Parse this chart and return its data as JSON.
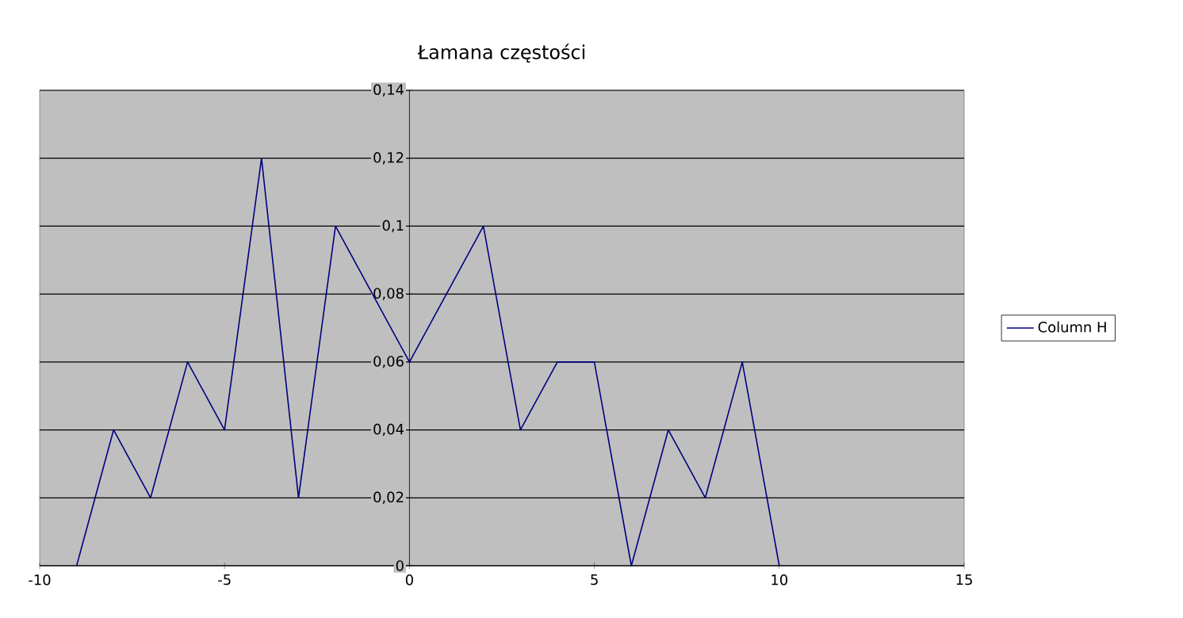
{
  "chart_data": {
    "type": "line",
    "title": "Łamana częstości",
    "x": [
      -9,
      -8,
      -7,
      -6,
      -5,
      -4,
      -3,
      -2,
      -1,
      0,
      1,
      2,
      3,
      4,
      5,
      6,
      7,
      8,
      9,
      10
    ],
    "series": [
      {
        "name": "Column H",
        "color": "#000080",
        "values": [
          0,
          0.04,
          0.02,
          0.06,
          0.04,
          0.12,
          0.02,
          0.1,
          0.08,
          0.06,
          0.08,
          0.1,
          0.04,
          0.06,
          0.06,
          0,
          0.04,
          0.02,
          0.06,
          0
        ]
      }
    ],
    "xlim": [
      -10,
      15
    ],
    "xticks": [
      -10,
      -5,
      0,
      5,
      10,
      15
    ],
    "ylim": [
      0,
      0.14
    ],
    "yticks": [
      0,
      {
        "value": 0.02,
        "label": "0,02"
      },
      {
        "value": 0.04,
        "label": "0,04"
      },
      {
        "value": 0.06,
        "label": "0,06"
      },
      {
        "value": 0.08,
        "label": "0,08"
      },
      {
        "value": 0.1,
        "label": "0,1"
      },
      {
        "value": 0.12,
        "label": "0,12"
      },
      {
        "value": 0.14,
        "label": "0,14"
      }
    ],
    "grid": "y",
    "legend": "right",
    "marker": "none",
    "line_style": "solid"
  }
}
